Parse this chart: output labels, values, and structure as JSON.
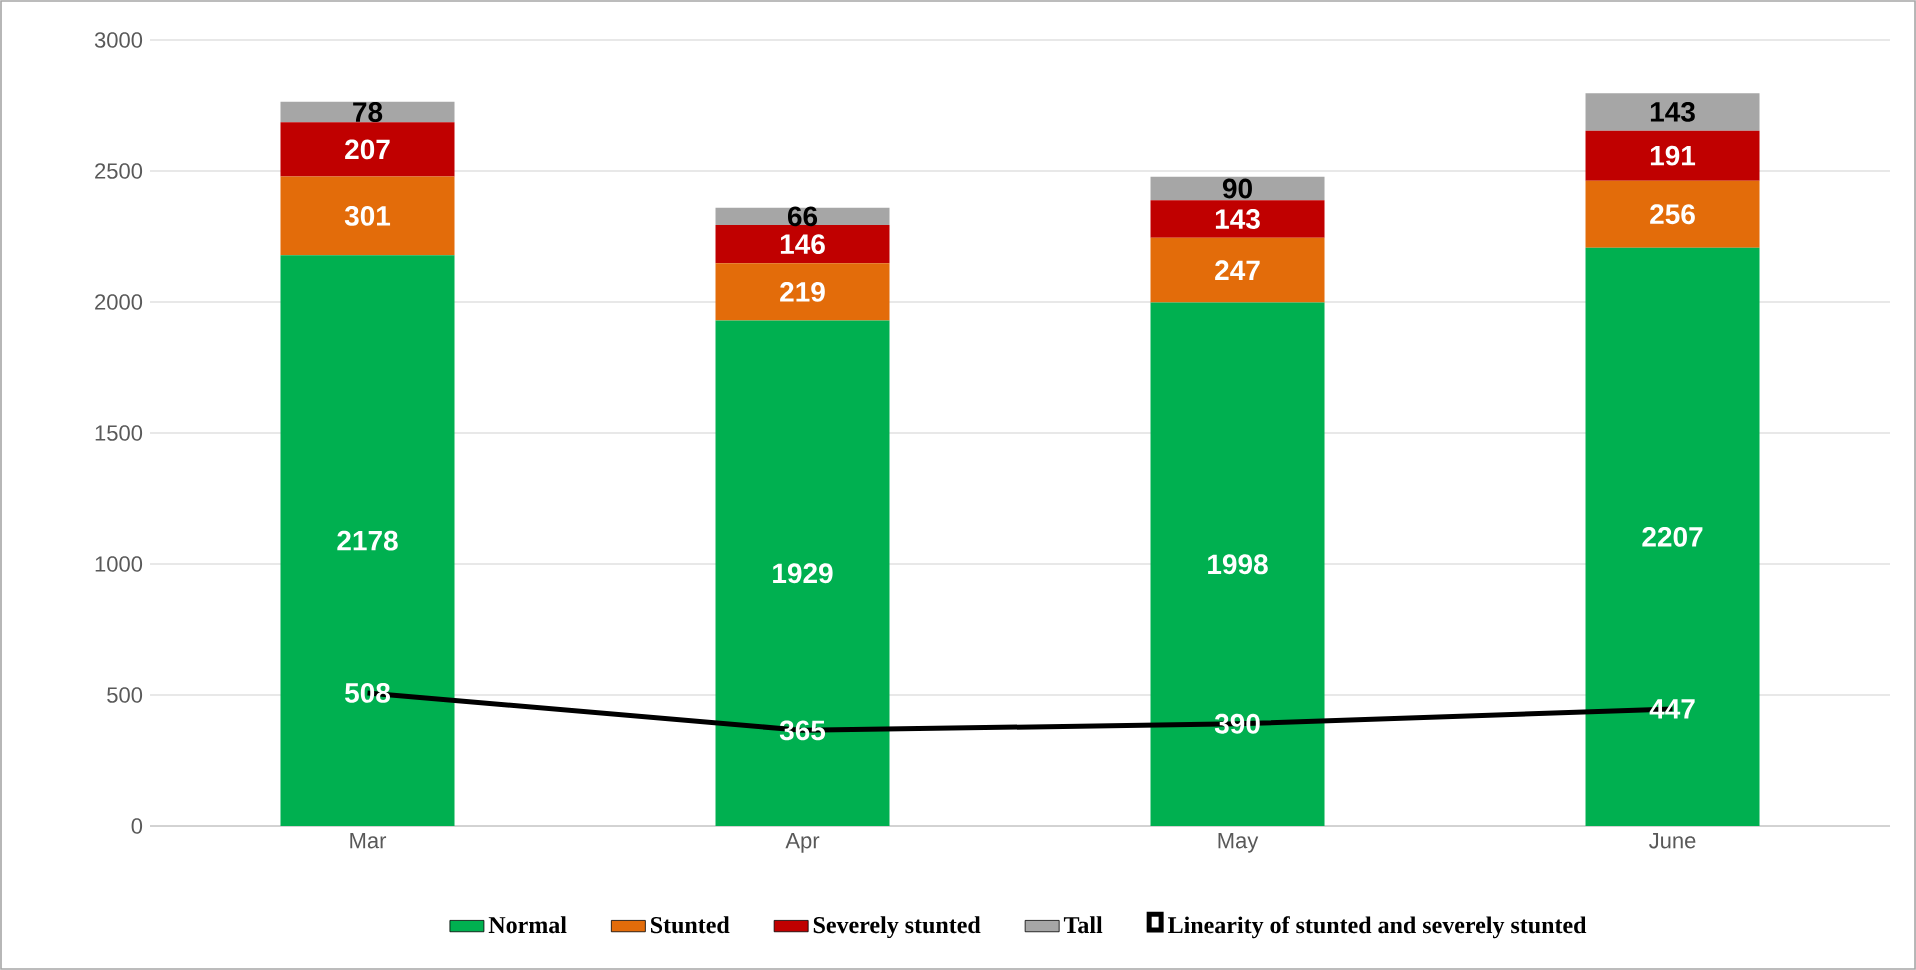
{
  "chart_data": {
    "type": "bar",
    "stacked": true,
    "categories": [
      "Mar",
      "Apr",
      "May",
      "June"
    ],
    "series": [
      {
        "name": "Normal",
        "color": "#00b050",
        "values": [
          2178,
          1929,
          1998,
          2207
        ]
      },
      {
        "name": "Stunted",
        "color": "#e36c0a",
        "values": [
          301,
          219,
          247,
          256
        ]
      },
      {
        "name": "Severely stunted",
        "color": "#c00000",
        "values": [
          207,
          146,
          143,
          191
        ]
      },
      {
        "name": "Tall",
        "color": "#a6a6a6",
        "values": [
          78,
          66,
          90,
          143
        ]
      },
      {
        "name": "Linearity of stunted and severely stunted",
        "type": "line",
        "color": "#000000",
        "values": [
          508,
          365,
          390,
          447
        ]
      }
    ],
    "ylim": [
      0,
      3000
    ],
    "yticks": [
      0,
      500,
      1000,
      1500,
      2000,
      2500,
      3000
    ],
    "grid": "y",
    "legend": "bottom",
    "data_labels": true
  }
}
